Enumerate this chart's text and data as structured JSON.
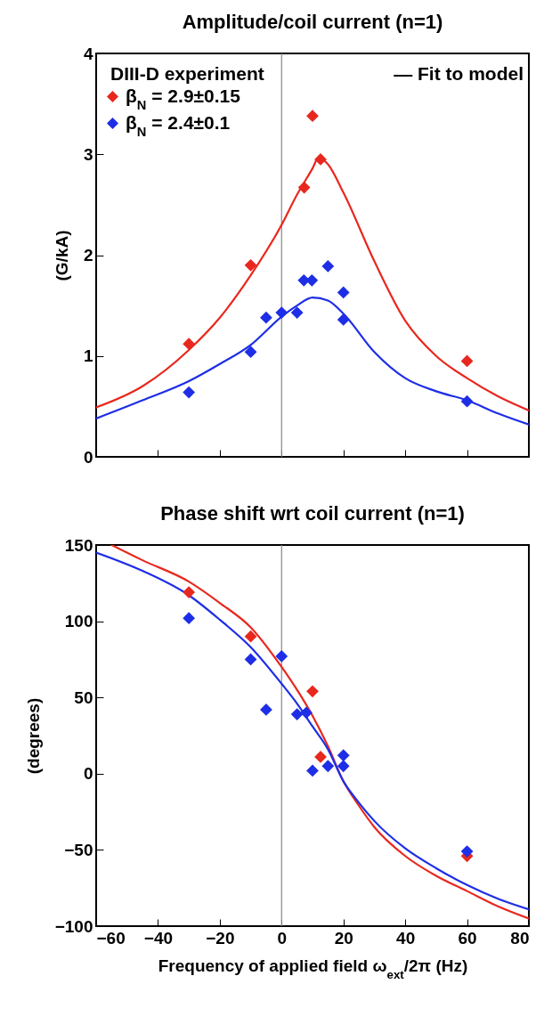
{
  "chart_data": [
    {
      "type": "scatter",
      "title": "Amplitude/coil current (n=1)",
      "ylabel": "(G/kA)",
      "annotations": [
        "DIII-D experiment",
        "— Fit to model"
      ],
      "xlim": [
        -60,
        80
      ],
      "xticks": [
        -60,
        -40,
        -20,
        0,
        20,
        40,
        60,
        80
      ],
      "ylim": [
        0,
        4
      ],
      "yticks": [
        0,
        1,
        2,
        3,
        4
      ],
      "tick_labels": "y",
      "grid": false,
      "legend": "top left",
      "marker": "diamond",
      "ref_lines": [
        {
          "axis": "x",
          "value": 0,
          "color": "#888888"
        }
      ],
      "series": [
        {
          "name": "β$_{N}$ = 2.9±0.15",
          "color": "#e8281e",
          "x": [
            -30,
            -10,
            7.3,
            10,
            12.6,
            60
          ],
          "values": [
            1.12,
            1.9,
            2.67,
            3.38,
            2.95,
            0.95
          ]
        },
        {
          "name": "β$_{N}$ = 2.4±0.1",
          "color": "#1e2ee6",
          "x": [
            -30,
            -10,
            -5,
            0,
            5,
            7.2,
            9.8,
            15,
            20,
            20,
            60
          ],
          "values": [
            0.64,
            1.04,
            1.38,
            1.43,
            1.43,
            1.75,
            1.75,
            1.89,
            1.63,
            1.36,
            0.55
          ]
        },
        {
          "type": "line",
          "marker": "none",
          "color": "#e8281e",
          "x": [
            -60,
            -45,
            -30,
            -20,
            -10,
            0,
            5,
            10,
            12,
            15,
            20,
            30,
            40,
            50,
            60,
            70,
            80
          ],
          "values": [
            0.49,
            0.7,
            1.06,
            1.38,
            1.8,
            2.3,
            2.6,
            2.86,
            2.97,
            2.9,
            2.62,
            1.94,
            1.35,
            1.0,
            0.78,
            0.6,
            0.46
          ]
        },
        {
          "type": "line",
          "marker": "none",
          "color": "#1e2ee6",
          "x": [
            -60,
            -45,
            -30,
            -20,
            -10,
            0,
            5,
            10,
            15,
            20,
            30,
            40,
            50,
            60,
            70,
            80
          ],
          "values": [
            0.38,
            0.56,
            0.75,
            0.92,
            1.11,
            1.39,
            1.5,
            1.58,
            1.55,
            1.42,
            1.04,
            0.78,
            0.65,
            0.56,
            0.43,
            0.32
          ]
        }
      ]
    },
    {
      "type": "scatter",
      "title": "Phase shift wrt coil current (n=1)",
      "xlabel": "Frequency of applied field ω$_{ext}$/2π (Hz)",
      "ylabel": "(degrees)",
      "xlim": [
        -60,
        80
      ],
      "xticks": [
        -60,
        -40,
        -20,
        0,
        20,
        40,
        60,
        80
      ],
      "ylim": [
        -100,
        150
      ],
      "yticks": [
        -100,
        -50,
        0,
        50,
        100,
        150
      ],
      "grid": false,
      "legend": false,
      "marker": "diamond",
      "ref_lines": [
        {
          "axis": "x",
          "value": 0,
          "color": "#888888"
        }
      ],
      "series": [
        {
          "color": "#e8281e",
          "x": [
            -30,
            -10,
            10,
            12.6,
            60
          ],
          "values": [
            119,
            90,
            54,
            11,
            -54
          ]
        },
        {
          "color": "#1e2ee6",
          "x": [
            -30,
            -10,
            -5,
            0,
            5,
            8,
            10,
            15,
            20,
            20,
            60
          ],
          "values": [
            102,
            75,
            42,
            77,
            39,
            40,
            2,
            5,
            12,
            5,
            -51
          ]
        },
        {
          "type": "line",
          "marker": "none",
          "color": "#e8281e",
          "x": [
            -55,
            -45,
            -30,
            -20,
            -10,
            0,
            5,
            10,
            15,
            20,
            25,
            30,
            40,
            50,
            60,
            70,
            80
          ],
          "values": [
            150,
            140,
            126,
            112,
            96,
            70,
            55,
            38,
            18,
            -5,
            -21,
            -35,
            -54,
            -67,
            -77,
            -87,
            -95
          ]
        },
        {
          "type": "line",
          "marker": "none",
          "color": "#1e2ee6",
          "x": [
            -60,
            -45,
            -30,
            -20,
            -10,
            0,
            5,
            10,
            15,
            20,
            25,
            30,
            40,
            50,
            60,
            70,
            80
          ],
          "values": [
            145,
            133,
            117,
            101,
            83,
            59,
            46,
            31,
            16,
            -5,
            -19,
            -31,
            -49,
            -62,
            -73,
            -82,
            -89
          ]
        }
      ]
    }
  ]
}
